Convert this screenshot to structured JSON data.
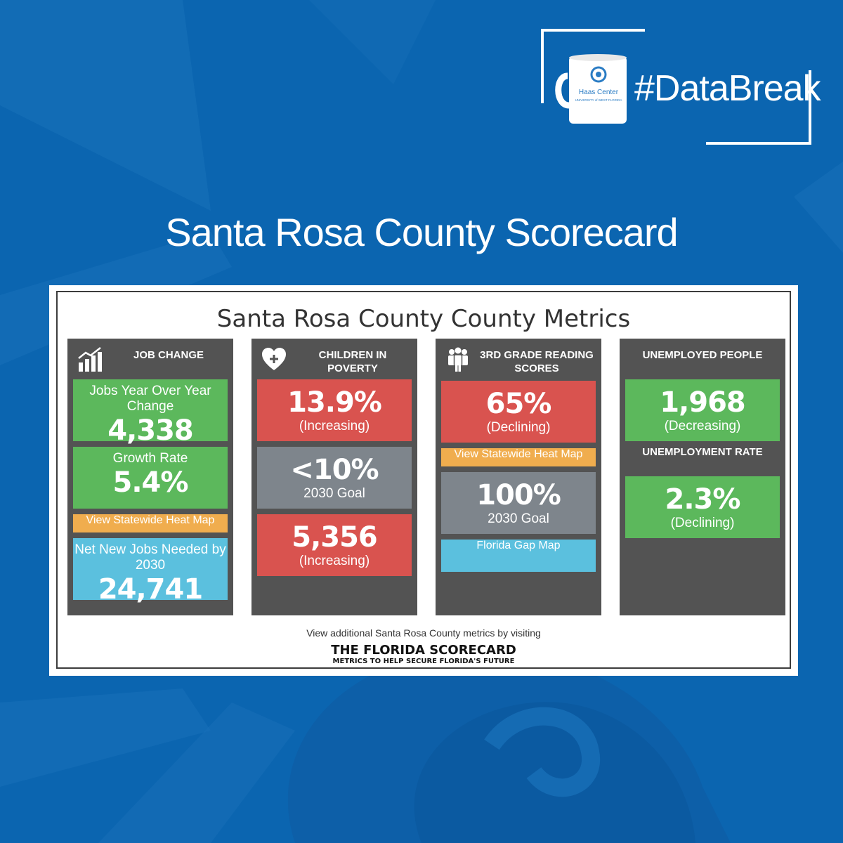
{
  "header": {
    "hashtag": "#DataBreak",
    "mug_text": {
      "line1": "Haas Center",
      "line2": "UNIVERSITY of WEST FLORIDA"
    }
  },
  "page_title": "Santa Rosa County Scorecard",
  "scorecard": {
    "title": "Santa Rosa County County Metrics",
    "colors": {
      "green": "#5cb85c",
      "red": "#d9534f",
      "gray": "#7e858c",
      "cyan": "#5bc0de",
      "orange": "#f0ad4e",
      "column": "#535353"
    },
    "job_change": {
      "heading": "JOB CHANGE",
      "icon": "bar-chart-growth-icon",
      "yoy_label": "Jobs Year Over Year Change",
      "yoy_value": "4,338",
      "growth_label": "Growth Rate",
      "growth_value": "5.4%",
      "heat_map_link": "View Statewide Heat Map",
      "needed_label": "Net New Jobs Needed by 2030",
      "needed_value": "24,741"
    },
    "children_poverty": {
      "heading": "CHILDREN IN POVERTY",
      "icon": "heart-plus-icon",
      "rate_value": "13.9%",
      "rate_trend": "(Increasing)",
      "goal_value": "<10%",
      "goal_label": "2030 Goal",
      "count_value": "5,356",
      "count_trend": "(Increasing)"
    },
    "reading": {
      "heading_line1": "3RD GRADE READING",
      "heading_line2": "SCORES",
      "icon": "people-group-icon",
      "score_value": "65%",
      "score_trend": "(Declining)",
      "heat_map_link": "View Statewide Heat Map",
      "goal_value": "100%",
      "goal_label": "2030 Goal",
      "gap_map_link": "Florida Gap Map"
    },
    "unemployment": {
      "heading": "UNEMPLOYED PEOPLE",
      "people_value": "1,968",
      "people_trend": "(Decreasing)",
      "rate_heading": "UNEMPLOYMENT RATE",
      "rate_value": "2.3%",
      "rate_trend": "(Declining)"
    },
    "footer_text": "View additional Santa Rosa County metrics by visiting",
    "footer_logo": {
      "line1": "THE FLORIDA SCORECARD",
      "line2": "METRICS TO HELP SECURE FLORIDA'S FUTURE"
    }
  }
}
